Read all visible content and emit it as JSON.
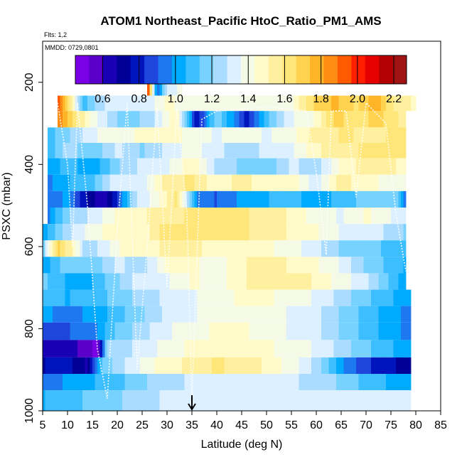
{
  "chart_data": {
    "type": "heatmap",
    "title": "ATOM1 Northeast_Pacific HtoC_Ratio_PM1_AMS",
    "flights_label": "Flts: 1,2",
    "date_label": "MMDD: 0729,0801",
    "xlabel": "Latitude (deg N)",
    "ylabel": "PSXC (mbar)",
    "xlim": [
      5,
      85
    ],
    "ylim": [
      1000,
      100
    ],
    "x_ticks": [
      "5",
      "10",
      "15",
      "20",
      "25",
      "30",
      "35",
      "40",
      "45",
      "50",
      "55",
      "60",
      "65",
      "70",
      "75",
      "80",
      "85"
    ],
    "y_ticks": [
      "200",
      "400",
      "600",
      "800",
      "1000"
    ],
    "colorbar": {
      "range": [
        0.45,
        2.27
      ],
      "ticks": [
        "0.6",
        "0.8",
        "1.0",
        "1.2",
        "1.4",
        "1.6",
        "1.8",
        "2.0",
        "2.2"
      ],
      "colors": [
        "#7a00e6",
        "#5a00c8",
        "#1a00b4",
        "#000096",
        "#0014be",
        "#1e46dc",
        "#1e78f0",
        "#00aaff",
        "#3cbeff",
        "#78d2ff",
        "#aadcff",
        "#dcf0ff",
        "#f5fae6",
        "#fffac8",
        "#fff0a0",
        "#ffe678",
        "#ffd250",
        "#ffb428",
        "#ff8c14",
        "#ff5a00",
        "#ff1e00",
        "#e60000",
        "#b40000",
        "#a01414"
      ]
    },
    "marker_latitude": 35,
    "row_pressures": [
      215,
      250,
      290,
      330,
      365,
      405,
      445,
      485,
      525,
      565,
      605,
      645,
      685,
      725,
      765,
      805,
      850,
      890,
      930,
      970
    ],
    "row_latitude_ranges": [
      [
        26,
        33
      ],
      [
        8,
        80
      ],
      [
        8,
        78
      ],
      [
        6,
        78
      ],
      [
        6,
        78
      ],
      [
        6,
        78
      ],
      [
        6,
        78
      ],
      [
        6,
        78
      ],
      [
        6,
        78
      ],
      [
        5,
        78
      ],
      [
        5,
        78
      ],
      [
        5,
        78
      ],
      [
        5,
        78
      ],
      [
        5,
        79
      ],
      [
        5,
        79
      ],
      [
        5,
        79
      ],
      [
        5,
        79
      ],
      [
        5,
        79
      ],
      [
        5,
        79
      ],
      [
        5,
        79
      ]
    ],
    "row_profiles": [
      [
        [
          26,
          2.1
        ],
        [
          28,
          0.9
        ],
        [
          30,
          1.3
        ],
        [
          33,
          1.4
        ]
      ],
      [
        [
          8,
          2.0
        ],
        [
          10,
          1.7
        ],
        [
          13,
          1.1
        ],
        [
          18,
          1.3
        ],
        [
          22,
          1.35
        ],
        [
          26,
          1.3
        ],
        [
          30,
          1.45
        ],
        [
          35,
          1.4
        ],
        [
          45,
          1.4
        ],
        [
          55,
          1.42
        ],
        [
          60,
          1.7
        ],
        [
          64,
          1.75
        ],
        [
          68,
          1.65
        ],
        [
          72,
          1.8
        ],
        [
          76,
          1.55
        ],
        [
          80,
          1.5
        ]
      ],
      [
        [
          8,
          1.9
        ],
        [
          12,
          1.6
        ],
        [
          16,
          1.35
        ],
        [
          20,
          1.2
        ],
        [
          24,
          1.2
        ],
        [
          28,
          1.3
        ],
        [
          32,
          1.5
        ],
        [
          36,
          0.75
        ],
        [
          40,
          1.2
        ],
        [
          46,
          0.8
        ],
        [
          50,
          1.1
        ],
        [
          55,
          1.35
        ],
        [
          60,
          1.45
        ],
        [
          64,
          1.7
        ],
        [
          68,
          1.6
        ],
        [
          72,
          1.7
        ],
        [
          78,
          1.55
        ]
      ],
      [
        [
          6,
          1.1
        ],
        [
          10,
          1.2
        ],
        [
          15,
          1.35
        ],
        [
          20,
          1.4
        ],
        [
          25,
          1.45
        ],
        [
          30,
          1.5
        ],
        [
          35,
          1.4
        ],
        [
          40,
          1.35
        ],
        [
          45,
          1.4
        ],
        [
          50,
          1.35
        ],
        [
          55,
          1.4
        ],
        [
          60,
          1.55
        ],
        [
          66,
          1.6
        ],
        [
          72,
          1.55
        ],
        [
          78,
          1.65
        ]
      ],
      [
        [
          6,
          1.05
        ],
        [
          10,
          1.25
        ],
        [
          15,
          1.15
        ],
        [
          20,
          1.3
        ],
        [
          25,
          1.2
        ],
        [
          30,
          1.3
        ],
        [
          35,
          1.4
        ],
        [
          40,
          1.3
        ],
        [
          45,
          1.25
        ],
        [
          50,
          1.3
        ],
        [
          55,
          1.35
        ],
        [
          60,
          1.5
        ],
        [
          65,
          1.55
        ],
        [
          70,
          1.6
        ],
        [
          78,
          1.62
        ]
      ],
      [
        [
          6,
          1.0
        ],
        [
          10,
          1.1
        ],
        [
          15,
          1.0
        ],
        [
          20,
          1.2
        ],
        [
          25,
          1.3
        ],
        [
          30,
          1.35
        ],
        [
          35,
          1.5
        ],
        [
          40,
          1.25
        ],
        [
          45,
          1.2
        ],
        [
          50,
          1.15
        ],
        [
          55,
          1.3
        ],
        [
          60,
          1.25
        ],
        [
          65,
          1.45
        ],
        [
          70,
          1.55
        ],
        [
          78,
          1.5
        ]
      ],
      [
        [
          6,
          0.95
        ],
        [
          10,
          1.05
        ],
        [
          15,
          1.1
        ],
        [
          20,
          1.35
        ],
        [
          25,
          1.3
        ],
        [
          30,
          1.55
        ],
        [
          35,
          1.6
        ],
        [
          40,
          1.45
        ],
        [
          45,
          1.55
        ],
        [
          50,
          1.45
        ],
        [
          55,
          1.5
        ],
        [
          60,
          1.3
        ],
        [
          65,
          1.55
        ],
        [
          70,
          1.45
        ],
        [
          78,
          1.4
        ]
      ],
      [
        [
          6,
          0.9
        ],
        [
          10,
          1.0
        ],
        [
          14,
          0.75
        ],
        [
          17,
          0.6
        ],
        [
          20,
          0.85
        ],
        [
          24,
          1.3
        ],
        [
          28,
          1.4
        ],
        [
          32,
          1.6
        ],
        [
          36,
          0.95
        ],
        [
          40,
          0.9
        ],
        [
          45,
          1.0
        ],
        [
          50,
          1.05
        ],
        [
          55,
          1.1
        ],
        [
          60,
          1.0
        ],
        [
          65,
          1.1
        ],
        [
          70,
          1.15
        ],
        [
          76,
          1.2
        ],
        [
          78,
          0.9
        ]
      ],
      [
        [
          6,
          0.95
        ],
        [
          10,
          1.2
        ],
        [
          15,
          1.3
        ],
        [
          20,
          1.45
        ],
        [
          25,
          1.5
        ],
        [
          30,
          1.55
        ],
        [
          35,
          1.6
        ],
        [
          40,
          1.65
        ],
        [
          45,
          1.6
        ],
        [
          50,
          1.55
        ],
        [
          55,
          1.5
        ],
        [
          60,
          1.4
        ],
        [
          65,
          1.35
        ],
        [
          70,
          1.45
        ],
        [
          78,
          1.3
        ]
      ],
      [
        [
          5,
          1.0
        ],
        [
          10,
          1.25
        ],
        [
          15,
          1.4
        ],
        [
          20,
          1.5
        ],
        [
          25,
          1.45
        ],
        [
          30,
          1.65
        ],
        [
          35,
          1.6
        ],
        [
          40,
          1.65
        ],
        [
          45,
          1.6
        ],
        [
          50,
          1.55
        ],
        [
          55,
          1.5
        ],
        [
          60,
          1.45
        ],
        [
          65,
          1.35
        ],
        [
          70,
          1.35
        ],
        [
          78,
          1.2
        ]
      ],
      [
        [
          5,
          1.15
        ],
        [
          8,
          1.7
        ],
        [
          11,
          1.5
        ],
        [
          14,
          1.2
        ],
        [
          18,
          1.35
        ],
        [
          22,
          1.5
        ],
        [
          26,
          1.45
        ],
        [
          30,
          1.55
        ],
        [
          35,
          1.55
        ],
        [
          40,
          1.45
        ],
        [
          45,
          1.5
        ],
        [
          50,
          1.45
        ],
        [
          55,
          1.4
        ],
        [
          60,
          1.3
        ],
        [
          65,
          1.2
        ],
        [
          70,
          1.15
        ],
        [
          78,
          1.1
        ]
      ],
      [
        [
          5,
          1.0
        ],
        [
          10,
          1.2
        ],
        [
          15,
          1.15
        ],
        [
          20,
          1.3
        ],
        [
          25,
          1.25
        ],
        [
          30,
          1.45
        ],
        [
          35,
          1.45
        ],
        [
          40,
          1.4
        ],
        [
          45,
          1.5
        ],
        [
          50,
          1.55
        ],
        [
          55,
          1.5
        ],
        [
          60,
          1.45
        ],
        [
          65,
          1.35
        ],
        [
          70,
          1.2
        ],
        [
          78,
          1.05
        ]
      ],
      [
        [
          5,
          1.15
        ],
        [
          10,
          1.05
        ],
        [
          15,
          1.05
        ],
        [
          20,
          1.2
        ],
        [
          25,
          1.35
        ],
        [
          30,
          1.35
        ],
        [
          35,
          1.45
        ],
        [
          40,
          1.4
        ],
        [
          45,
          1.5
        ],
        [
          50,
          1.55
        ],
        [
          55,
          1.55
        ],
        [
          60,
          1.5
        ],
        [
          65,
          1.4
        ],
        [
          70,
          1.3
        ],
        [
          78,
          1.0
        ]
      ],
      [
        [
          5,
          1.1
        ],
        [
          10,
          1.05
        ],
        [
          15,
          1.1
        ],
        [
          20,
          1.15
        ],
        [
          25,
          1.25
        ],
        [
          30,
          1.3
        ],
        [
          35,
          1.35
        ],
        [
          40,
          1.4
        ],
        [
          45,
          1.45
        ],
        [
          50,
          1.45
        ],
        [
          55,
          1.4
        ],
        [
          60,
          1.35
        ],
        [
          65,
          1.25
        ],
        [
          70,
          1.15
        ],
        [
          79,
          1.0
        ]
      ],
      [
        [
          5,
          1.0
        ],
        [
          10,
          0.95
        ],
        [
          15,
          1.0
        ],
        [
          20,
          1.1
        ],
        [
          25,
          1.2
        ],
        [
          30,
          1.3
        ],
        [
          35,
          1.35
        ],
        [
          40,
          1.4
        ],
        [
          45,
          1.4
        ],
        [
          50,
          1.4
        ],
        [
          55,
          1.35
        ],
        [
          60,
          1.3
        ],
        [
          65,
          1.2
        ],
        [
          70,
          1.1
        ],
        [
          79,
          0.95
        ]
      ],
      [
        [
          5,
          0.9
        ],
        [
          10,
          0.9
        ],
        [
          15,
          0.95
        ],
        [
          20,
          1.15
        ],
        [
          25,
          1.25
        ],
        [
          30,
          1.35
        ],
        [
          35,
          1.4
        ],
        [
          40,
          1.45
        ],
        [
          45,
          1.45
        ],
        [
          50,
          1.4
        ],
        [
          55,
          1.35
        ],
        [
          60,
          1.3
        ],
        [
          65,
          1.2
        ],
        [
          70,
          1.1
        ],
        [
          79,
          0.95
        ]
      ],
      [
        [
          5,
          0.65
        ],
        [
          10,
          0.65
        ],
        [
          16,
          0.5
        ],
        [
          18,
          1.25
        ],
        [
          25,
          1.3
        ],
        [
          30,
          1.4
        ],
        [
          35,
          1.45
        ],
        [
          40,
          1.45
        ],
        [
          45,
          1.5
        ],
        [
          50,
          1.45
        ],
        [
          55,
          1.4
        ],
        [
          60,
          1.35
        ],
        [
          65,
          1.25
        ],
        [
          70,
          1.15
        ],
        [
          79,
          1.0
        ]
      ],
      [
        [
          5,
          0.75
        ],
        [
          10,
          0.8
        ],
        [
          14,
          0.65
        ],
        [
          17,
          1.15
        ],
        [
          22,
          1.3
        ],
        [
          28,
          1.45
        ],
        [
          32,
          1.5
        ],
        [
          36,
          1.55
        ],
        [
          40,
          1.6
        ],
        [
          45,
          1.55
        ],
        [
          50,
          1.5
        ],
        [
          55,
          1.4
        ],
        [
          60,
          1.25
        ],
        [
          65,
          1.0
        ],
        [
          70,
          0.85
        ],
        [
          79,
          0.7
        ]
      ],
      [
        [
          5,
          0.9
        ],
        [
          10,
          1.0
        ],
        [
          15,
          1.05
        ],
        [
          20,
          1.1
        ],
        [
          25,
          1.2
        ],
        [
          30,
          1.25
        ],
        [
          35,
          1.3
        ],
        [
          40,
          1.35
        ],
        [
          45,
          1.35
        ],
        [
          50,
          1.35
        ],
        [
          55,
          1.3
        ],
        [
          60,
          1.25
        ],
        [
          65,
          1.2
        ],
        [
          70,
          1.1
        ],
        [
          79,
          1.0
        ]
      ],
      [
        [
          5,
          1.05
        ],
        [
          10,
          1.1
        ],
        [
          15,
          1.15
        ],
        [
          20,
          1.2
        ],
        [
          25,
          1.25
        ],
        [
          30,
          1.3
        ],
        [
          35,
          1.3
        ],
        [
          40,
          1.3
        ],
        [
          45,
          1.3
        ],
        [
          50,
          1.3
        ],
        [
          55,
          1.3
        ],
        [
          60,
          1.3
        ],
        [
          65,
          1.3
        ],
        [
          70,
          1.3
        ],
        [
          79,
          1.3
        ]
      ]
    ],
    "flight_track": [
      [
        8,
        250
      ],
      [
        10,
        400
      ],
      [
        11,
        600
      ],
      [
        12,
        250
      ],
      [
        14,
        500
      ],
      [
        16,
        850
      ],
      [
        18,
        970
      ],
      [
        20,
        560
      ],
      [
        22,
        250
      ],
      [
        24,
        900
      ],
      [
        26,
        600
      ],
      [
        28,
        260
      ],
      [
        30,
        700
      ],
      [
        32,
        260
      ],
      [
        34,
        520
      ],
      [
        35,
        980
      ],
      [
        37,
        290
      ],
      [
        40,
        270
      ],
      [
        50,
        260
      ],
      [
        58,
        270
      ],
      [
        60,
        420
      ],
      [
        62,
        620
      ],
      [
        63,
        270
      ],
      [
        66,
        270
      ],
      [
        68,
        480
      ],
      [
        70,
        250
      ],
      [
        74,
        300
      ],
      [
        76,
        520
      ],
      [
        78,
        660
      ]
    ]
  }
}
